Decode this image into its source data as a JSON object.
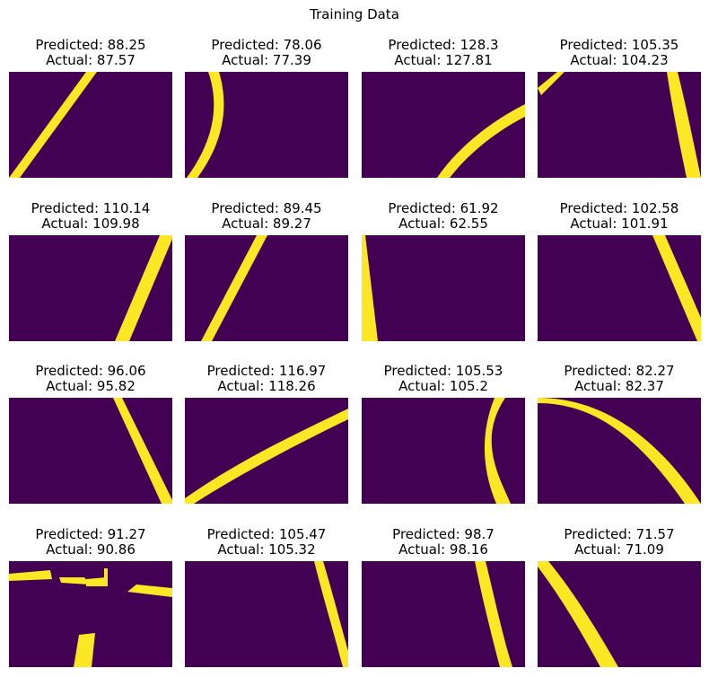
{
  "figure": {
    "title": "Training Data",
    "colors": {
      "background": "#440154",
      "foreground": "#fde725"
    },
    "panels": [
      {
        "predicted": "Predicted: 88.25",
        "actual": "Actual: 87.57",
        "shape": "curve-up-right"
      },
      {
        "predicted": "Predicted: 78.06",
        "actual": "Actual: 77.39",
        "shape": "arc-left"
      },
      {
        "predicted": "Predicted: 128.3",
        "actual": "Actual: 127.81",
        "shape": "curve-bottom"
      },
      {
        "predicted": "Predicted: 105.35",
        "actual": "Actual: 104.23",
        "shape": "two-strokes"
      },
      {
        "predicted": "Predicted: 110.14",
        "actual": "Actual: 109.98",
        "shape": "diagonal-right"
      },
      {
        "predicted": "Predicted: 89.45",
        "actual": "Actual: 89.27",
        "shape": "diagonal-middle"
      },
      {
        "predicted": "Predicted: 61.92",
        "actual": "Actual: 62.55",
        "shape": "left-edge"
      },
      {
        "predicted": "Predicted: 102.58",
        "actual": "Actual: 101.91",
        "shape": "diagonal-down-right"
      },
      {
        "predicted": "Predicted: 96.06",
        "actual": "Actual: 95.82",
        "shape": "diagonal-down-middle"
      },
      {
        "predicted": "Predicted: 116.97",
        "actual": "Actual: 118.26",
        "shape": "long-curve"
      },
      {
        "predicted": "Predicted: 105.53",
        "actual": "Actual: 105.2",
        "shape": "s-curve"
      },
      {
        "predicted": "Predicted: 82.27",
        "actual": "Actual: 82.37",
        "shape": "top-arc"
      },
      {
        "predicted": "Predicted: 91.27",
        "actual": "Actual: 90.86",
        "shape": "broken-segments"
      },
      {
        "predicted": "Predicted: 105.47",
        "actual": "Actual: 105.32",
        "shape": "right-curve"
      },
      {
        "predicted": "Predicted: 98.7",
        "actual": "Actual: 98.16",
        "shape": "near-vertical"
      },
      {
        "predicted": "Predicted: 71.57",
        "actual": "Actual: 71.09",
        "shape": "diagonal-from-top-left"
      }
    ]
  }
}
